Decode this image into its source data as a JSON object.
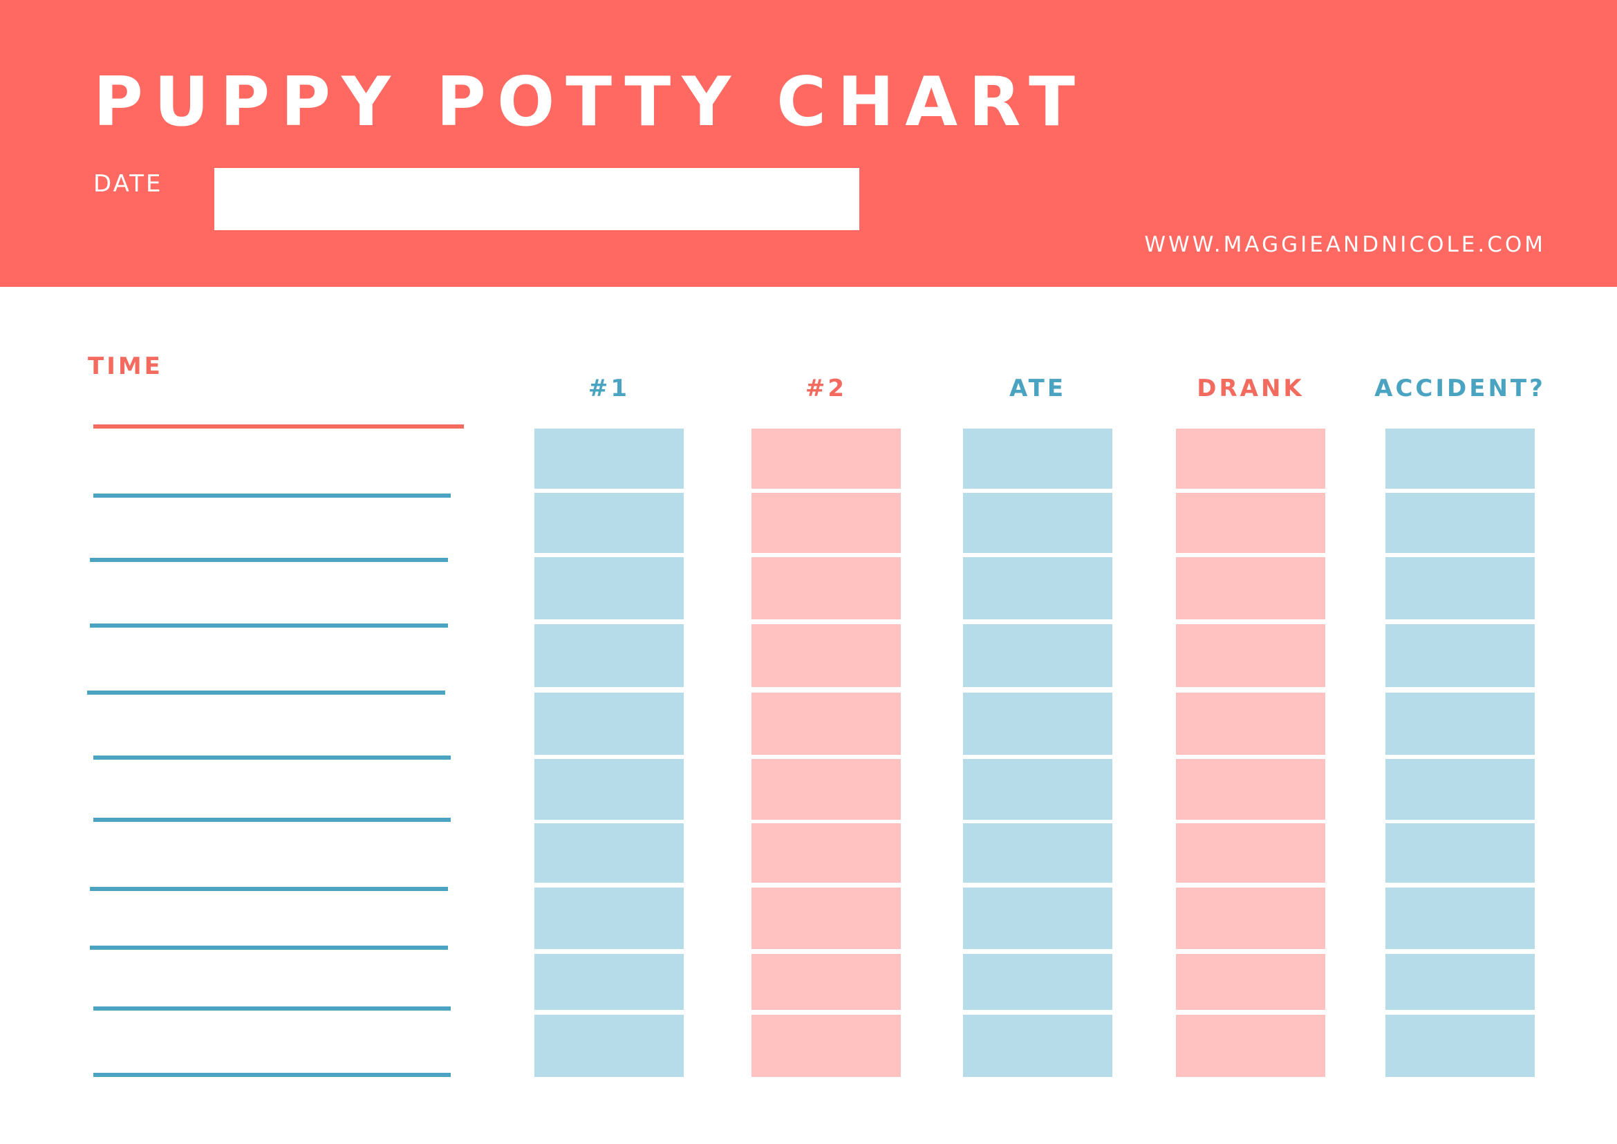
{
  "header": {
    "title": "PUPPY POTTY CHART",
    "date_label": "DATE",
    "date_value": "",
    "website": "WWW.MAGGIEANDNICOLE.COM"
  },
  "time_column": {
    "label": "TIME",
    "row_count": 11
  },
  "columns": [
    {
      "label": "#1",
      "theme": "blue"
    },
    {
      "label": "#2",
      "theme": "pink"
    },
    {
      "label": "ATE",
      "theme": "blue"
    },
    {
      "label": "DRANK",
      "theme": "pink"
    },
    {
      "label": "ACCIDENT?",
      "theme": "blue"
    }
  ],
  "colors": {
    "header_bg": "#ff6961",
    "header_text": "#ffffff",
    "coral_text": "#f36a5f",
    "teal_text": "#4aa3c0",
    "coral_line": "#f36a5f",
    "teal_line": "#4aa3c0",
    "blue_box": "#b6dcea",
    "pink_box": "#ffc2c0"
  }
}
